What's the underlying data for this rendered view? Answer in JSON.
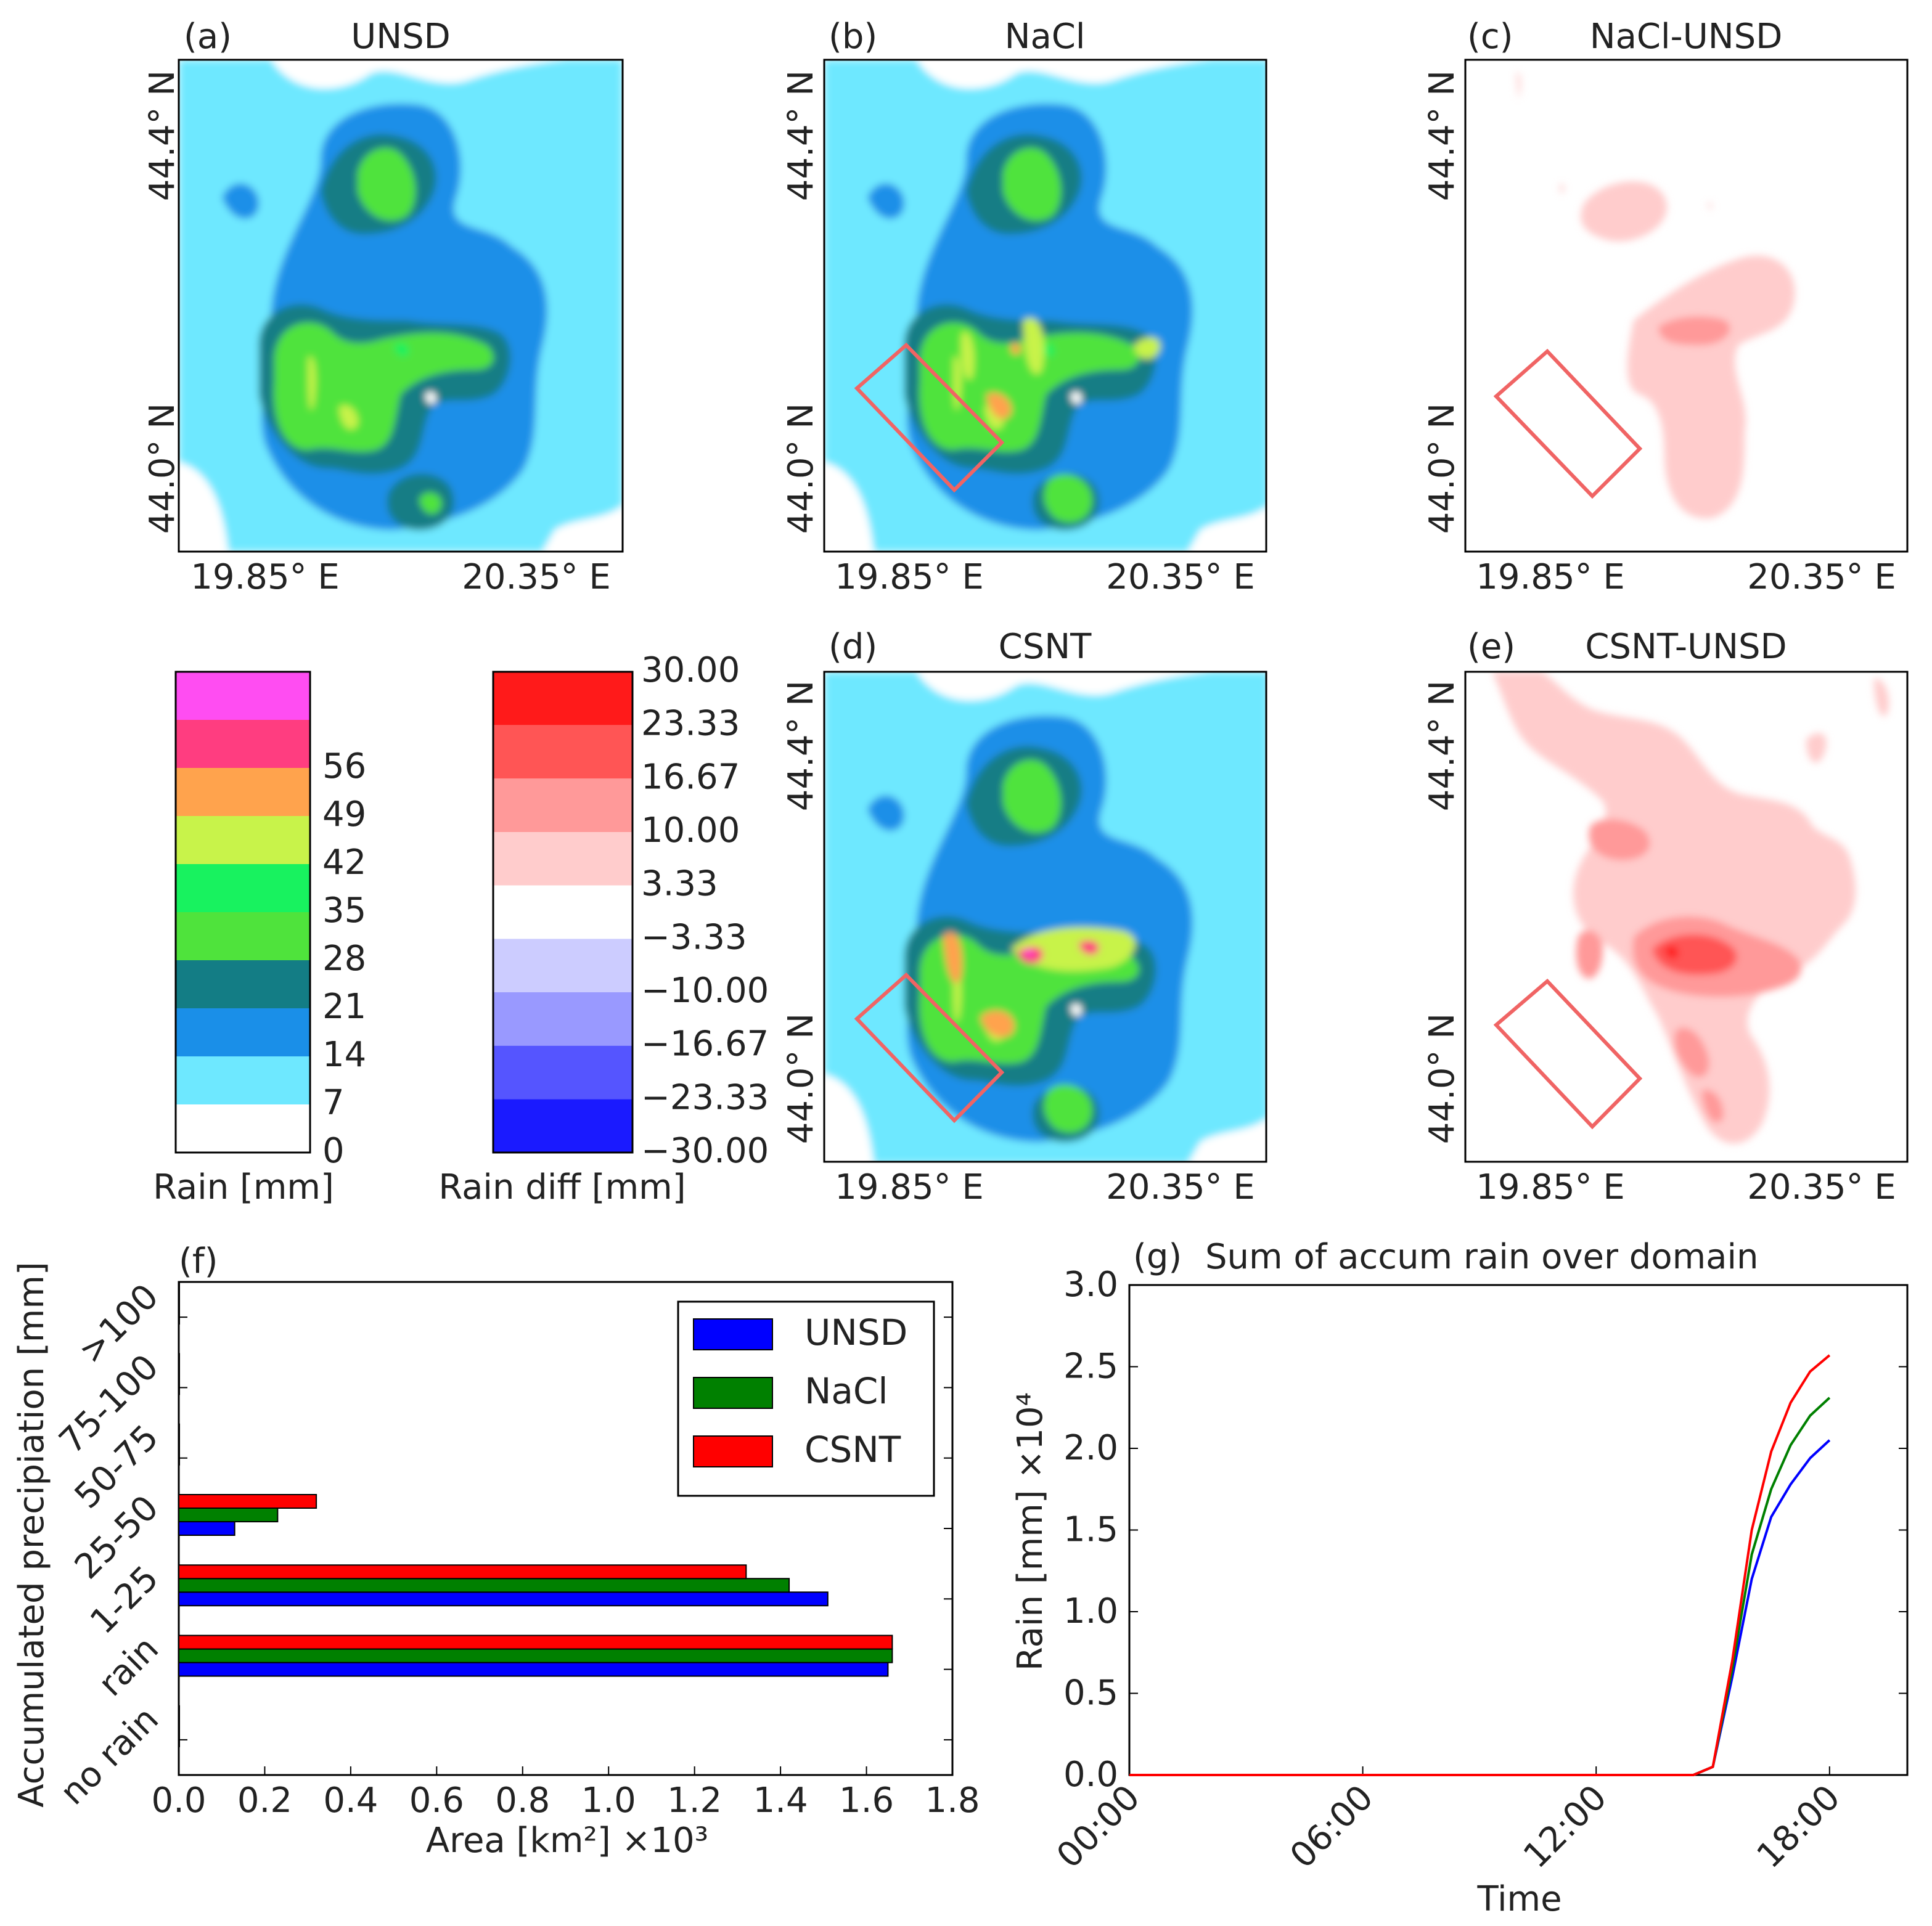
{
  "maps": {
    "a": {
      "tag": "(a)",
      "title": "UNSD"
    },
    "b": {
      "tag": "(b)",
      "title": "NaCl"
    },
    "c": {
      "tag": "(c)",
      "title": "NaCl-UNSD"
    },
    "d": {
      "tag": "(d)",
      "title": "CSNT"
    },
    "e": {
      "tag": "(e)",
      "title": "CSNT-UNSD"
    },
    "lat_labels": [
      "44.4° N",
      "44.0° N"
    ],
    "lon_labels": [
      "19.85° E",
      "20.35° E"
    ]
  },
  "colorbars": {
    "rain": {
      "label": "Rain [mm]",
      "ticks": [
        "0",
        "7",
        "14",
        "21",
        "28",
        "35",
        "42",
        "49",
        "56"
      ],
      "colors": [
        "#ffffff",
        "#6ee8ff",
        "#1a8fe8",
        "#137d85",
        "#4fe33c",
        "#18f25f",
        "#c8f34a",
        "#ffa34d",
        "#ff3d80",
        "#ff4df2"
      ]
    },
    "diff": {
      "label": "Rain diff [mm]",
      "ticks": [
        "30.00",
        "23.33",
        "16.67",
        "10.00",
        "3.33",
        "−3.33",
        "−10.00",
        "−16.67",
        "−23.33",
        "−30.00"
      ],
      "colors": [
        "#ff1a1a",
        "#ff5555",
        "#ff9999",
        "#ffcccc",
        "#ffffff",
        "#ccccff",
        "#9999ff",
        "#5555ff",
        "#1a1aff"
      ]
    }
  },
  "chart_data": [
    {
      "type": "bar",
      "orientation": "horizontal",
      "panel": "(f)",
      "categories": [
        "no rain",
        "rain",
        "1-25",
        "25-50",
        "50-75",
        "75-100",
        ">100"
      ],
      "series": [
        {
          "name": "UNSD",
          "color": "#0000ff",
          "values": [
            0.0,
            1.65,
            1.51,
            0.13,
            0.0,
            0.0,
            0.0
          ]
        },
        {
          "name": "NaCl",
          "color": "#008000",
          "values": [
            0.0,
            1.66,
            1.42,
            0.23,
            0.0,
            0.0,
            0.0
          ]
        },
        {
          "name": "CSNT",
          "color": "#ff0000",
          "values": [
            0.0,
            1.66,
            1.32,
            0.32,
            0.0,
            0.0,
            0.0
          ]
        }
      ],
      "xlim": [
        0.0,
        1.8
      ],
      "xticks": [
        "0.0",
        "0.2",
        "0.4",
        "0.6",
        "0.8",
        "1.0",
        "1.2",
        "1.4",
        "1.6",
        "1.8"
      ],
      "xlabel": "Area [km²] ×10³",
      "ylabel": "Accumulated precipiation [mm]",
      "legend": "top-right"
    },
    {
      "type": "line",
      "panel": "(g)",
      "title": "Sum of accum rain over domain",
      "x_hours": [
        0,
        12,
        14,
        14.5,
        15,
        15.5,
        16,
        16.5,
        17,
        17.5,
        18
      ],
      "xticks": [
        "00:00",
        "06:00",
        "12:00",
        "18:00"
      ],
      "xlim_hours": [
        0,
        20
      ],
      "ylim": [
        0.0,
        3.0
      ],
      "yticks": [
        "0.0",
        "0.5",
        "1.0",
        "1.5",
        "2.0",
        "2.5",
        "3.0"
      ],
      "xlabel": "Time",
      "ylabel": "Rain [mm] ×10⁴",
      "series": [
        {
          "name": "UNSD",
          "color": "#0000ff",
          "values": [
            0,
            0,
            0,
            0.0,
            0.05,
            0.6,
            1.2,
            1.58,
            1.78,
            1.94,
            2.05
          ]
        },
        {
          "name": "NaCl",
          "color": "#008000",
          "values": [
            0,
            0,
            0,
            0.0,
            0.05,
            0.65,
            1.35,
            1.75,
            2.02,
            2.2,
            2.31
          ]
        },
        {
          "name": "CSNT",
          "color": "#ff0000",
          "values": [
            0,
            0,
            0,
            0.0,
            0.05,
            0.7,
            1.5,
            1.98,
            2.28,
            2.47,
            2.57
          ]
        }
      ]
    }
  ]
}
